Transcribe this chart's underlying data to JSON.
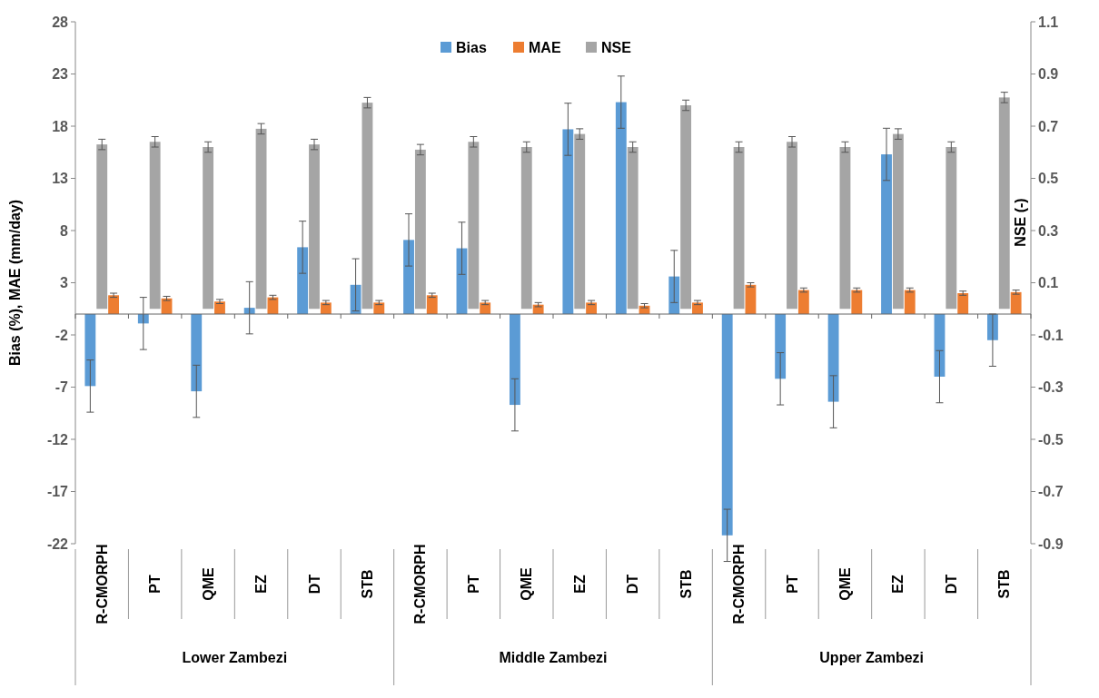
{
  "chart_data": {
    "type": "bar",
    "ylabel": "Bias (%), MAE (mm/day)",
    "y2label": "NSE  (-)",
    "categories": [
      "R-CMORPH",
      "PT",
      "QME",
      "EZ",
      "DT",
      "STB",
      "R-CMORPH",
      "PT",
      "QME",
      "EZ",
      "DT",
      "STB",
      "R-CMORPH",
      "PT",
      "QME",
      "EZ",
      "DT",
      "STB"
    ],
    "annotations": [
      "Lower Zambezi",
      "Middle Zambezi",
      "Upper Zambezi"
    ],
    "series": [
      {
        "name": "Bias",
        "color": "#5b9bd5",
        "values": [
          -6.9,
          -0.9,
          -7.4,
          0.6,
          6.4,
          2.8,
          7.1,
          6.3,
          -8.7,
          17.7,
          20.3,
          3.6,
          -21.2,
          -6.2,
          -8.4,
          15.3,
          -6.0,
          -2.5
        ],
        "errors": [
          2.5,
          2.5,
          2.5,
          2.5,
          2.5,
          2.5,
          2.5,
          2.5,
          2.5,
          2.5,
          2.5,
          2.5,
          2.5,
          2.5,
          2.5,
          2.5,
          2.5,
          2.5
        ]
      },
      {
        "name": "MAE",
        "color": "#ed7d31",
        "values": [
          1.8,
          1.5,
          1.2,
          1.6,
          1.1,
          1.1,
          1.8,
          1.1,
          0.9,
          1.1,
          0.8,
          1.1,
          2.8,
          2.3,
          2.3,
          2.3,
          2.0,
          2.1
        ],
        "errors": [
          0.2,
          0.2,
          0.2,
          0.2,
          0.2,
          0.2,
          0.2,
          0.2,
          0.2,
          0.2,
          0.2,
          0.2,
          0.2,
          0.2,
          0.2,
          0.2,
          0.2,
          0.2
        ]
      },
      {
        "name": "NSE",
        "color": "#a5a5a5",
        "axis": "y2",
        "values": [
          0.63,
          0.64,
          0.62,
          0.69,
          0.63,
          0.79,
          0.61,
          0.64,
          0.62,
          0.67,
          0.62,
          0.78,
          0.62,
          0.64,
          0.62,
          0.67,
          0.62,
          0.81
        ],
        "errors": [
          0.02,
          0.02,
          0.02,
          0.02,
          0.02,
          0.02,
          0.02,
          0.02,
          0.02,
          0.02,
          0.02,
          0.02,
          0.02,
          0.02,
          0.02,
          0.02,
          0.02,
          0.02
        ]
      }
    ],
    "ylim": [
      -22,
      28
    ],
    "yticks": [
      -22,
      -17,
      -12,
      -7,
      -2,
      3,
      8,
      13,
      18,
      23,
      28
    ],
    "y2lim": [
      -0.9,
      1.1
    ],
    "y2ticks": [
      -0.9,
      -0.7,
      -0.5,
      -0.3,
      -0.1,
      0.1,
      0.3,
      0.5,
      0.7,
      0.9,
      1.1
    ],
    "legend": "top",
    "grid": false
  }
}
